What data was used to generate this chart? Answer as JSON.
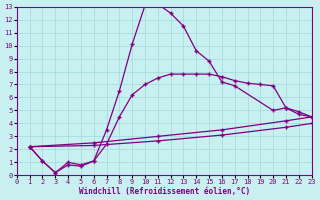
{
  "background_color": "#c8f0f0",
  "line_color": "#800080",
  "xlabel": "Windchill (Refroidissement éolien,°C)",
  "xlim": [
    0,
    23
  ],
  "ylim": [
    0,
    13
  ],
  "xticks": [
    0,
    1,
    2,
    3,
    4,
    5,
    6,
    7,
    8,
    9,
    10,
    11,
    12,
    13,
    14,
    15,
    16,
    17,
    18,
    19,
    20,
    21,
    22,
    23
  ],
  "yticks": [
    0,
    1,
    2,
    3,
    4,
    5,
    6,
    7,
    8,
    9,
    10,
    11,
    12,
    13
  ],
  "grid_color": "#a0d8d8",
  "line1_x": [
    1,
    2,
    3,
    4,
    5,
    6,
    7,
    8,
    9,
    10,
    11,
    12,
    13,
    14,
    15,
    16,
    17,
    20,
    21,
    22,
    23
  ],
  "line1_y": [
    2.2,
    1.1,
    0.2,
    1.0,
    0.8,
    1.1,
    3.5,
    6.5,
    10.1,
    13.1,
    13.2,
    12.5,
    11.5,
    9.6,
    8.8,
    7.2,
    6.9,
    5.0,
    5.2,
    4.7,
    4.5
  ],
  "line2_x": [
    1,
    2,
    3,
    4,
    5,
    6,
    7,
    8,
    9,
    10,
    11,
    12,
    13,
    14,
    15,
    16,
    17,
    18,
    19,
    20,
    21,
    22,
    23
  ],
  "line2_y": [
    2.2,
    1.1,
    0.2,
    0.8,
    0.7,
    1.1,
    2.4,
    4.5,
    6.2,
    7.0,
    7.5,
    7.8,
    7.8,
    7.8,
    7.8,
    7.6,
    7.3,
    7.1,
    7.0,
    6.9,
    5.2,
    4.9,
    4.5
  ],
  "line3_x": [
    1,
    6,
    11,
    16,
    21,
    23
  ],
  "line3_y": [
    2.2,
    2.5,
    3.0,
    3.5,
    4.2,
    4.5
  ],
  "line4_x": [
    1,
    6,
    11,
    16,
    21,
    23
  ],
  "line4_y": [
    2.2,
    2.3,
    2.65,
    3.1,
    3.7,
    4.0
  ]
}
